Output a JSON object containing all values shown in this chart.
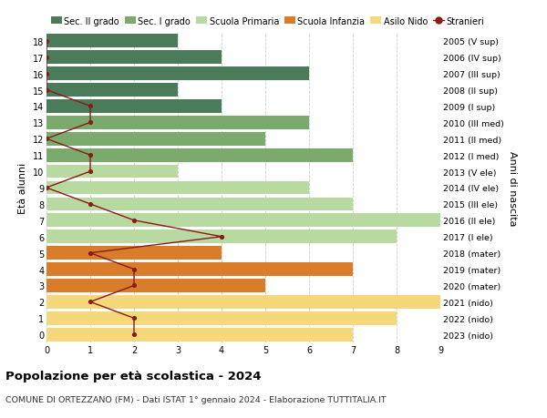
{
  "ages": [
    18,
    17,
    16,
    15,
    14,
    13,
    12,
    11,
    10,
    9,
    8,
    7,
    6,
    5,
    4,
    3,
    2,
    1,
    0
  ],
  "right_labels": [
    "2005 (V sup)",
    "2006 (IV sup)",
    "2007 (III sup)",
    "2008 (II sup)",
    "2009 (I sup)",
    "2010 (III med)",
    "2011 (II med)",
    "2012 (I med)",
    "2013 (V ele)",
    "2014 (IV ele)",
    "2015 (III ele)",
    "2016 (II ele)",
    "2017 (I ele)",
    "2018 (mater)",
    "2019 (mater)",
    "2020 (mater)",
    "2021 (nido)",
    "2022 (nido)",
    "2023 (nido)"
  ],
  "bar_values": [
    3,
    4,
    6,
    3,
    4,
    6,
    5,
    7,
    3,
    6,
    7,
    9,
    8,
    4,
    7,
    5,
    9,
    8,
    7
  ],
  "bar_colors": [
    "#4a7c59",
    "#4a7c59",
    "#4a7c59",
    "#4a7c59",
    "#4a7c59",
    "#7aab6d",
    "#7aab6d",
    "#7aab6d",
    "#b8d9a0",
    "#b8d9a0",
    "#b8d9a0",
    "#b8d9a0",
    "#b8d9a0",
    "#d97d2a",
    "#d97d2a",
    "#d97d2a",
    "#f5d87a",
    "#f5d87a",
    "#f5d87a"
  ],
  "stranieri_values": [
    0,
    0,
    0,
    0,
    1,
    1,
    0,
    1,
    1,
    0,
    1,
    2,
    4,
    1,
    2,
    2,
    1,
    2,
    2
  ],
  "xlim": [
    0,
    9
  ],
  "ylim": [
    -0.5,
    18.5
  ],
  "title": "Popolazione per età scolastica - 2024",
  "subtitle": "COMUNE DI ORTEZZANO (FM) - Dati ISTAT 1° gennaio 2024 - Elaborazione TUTTITALIA.IT",
  "ylabel": "Età alunni",
  "ylabel_right": "Anni di nascita",
  "legend_items": [
    {
      "label": "Sec. II grado",
      "color": "#4a7c59"
    },
    {
      "label": "Sec. I grado",
      "color": "#7aab6d"
    },
    {
      "label": "Scuola Primaria",
      "color": "#b8d9a0"
    },
    {
      "label": "Scuola Infanzia",
      "color": "#d97d2a"
    },
    {
      "label": "Asilo Nido",
      "color": "#f5d87a"
    },
    {
      "label": "Stranieri",
      "color": "#8b1a1a"
    }
  ],
  "line_color": "#8b1a1a",
  "marker_color": "#8b1a1a",
  "grid_color": "#cccccc",
  "bg_color": "#ffffff",
  "bar_height": 0.82
}
